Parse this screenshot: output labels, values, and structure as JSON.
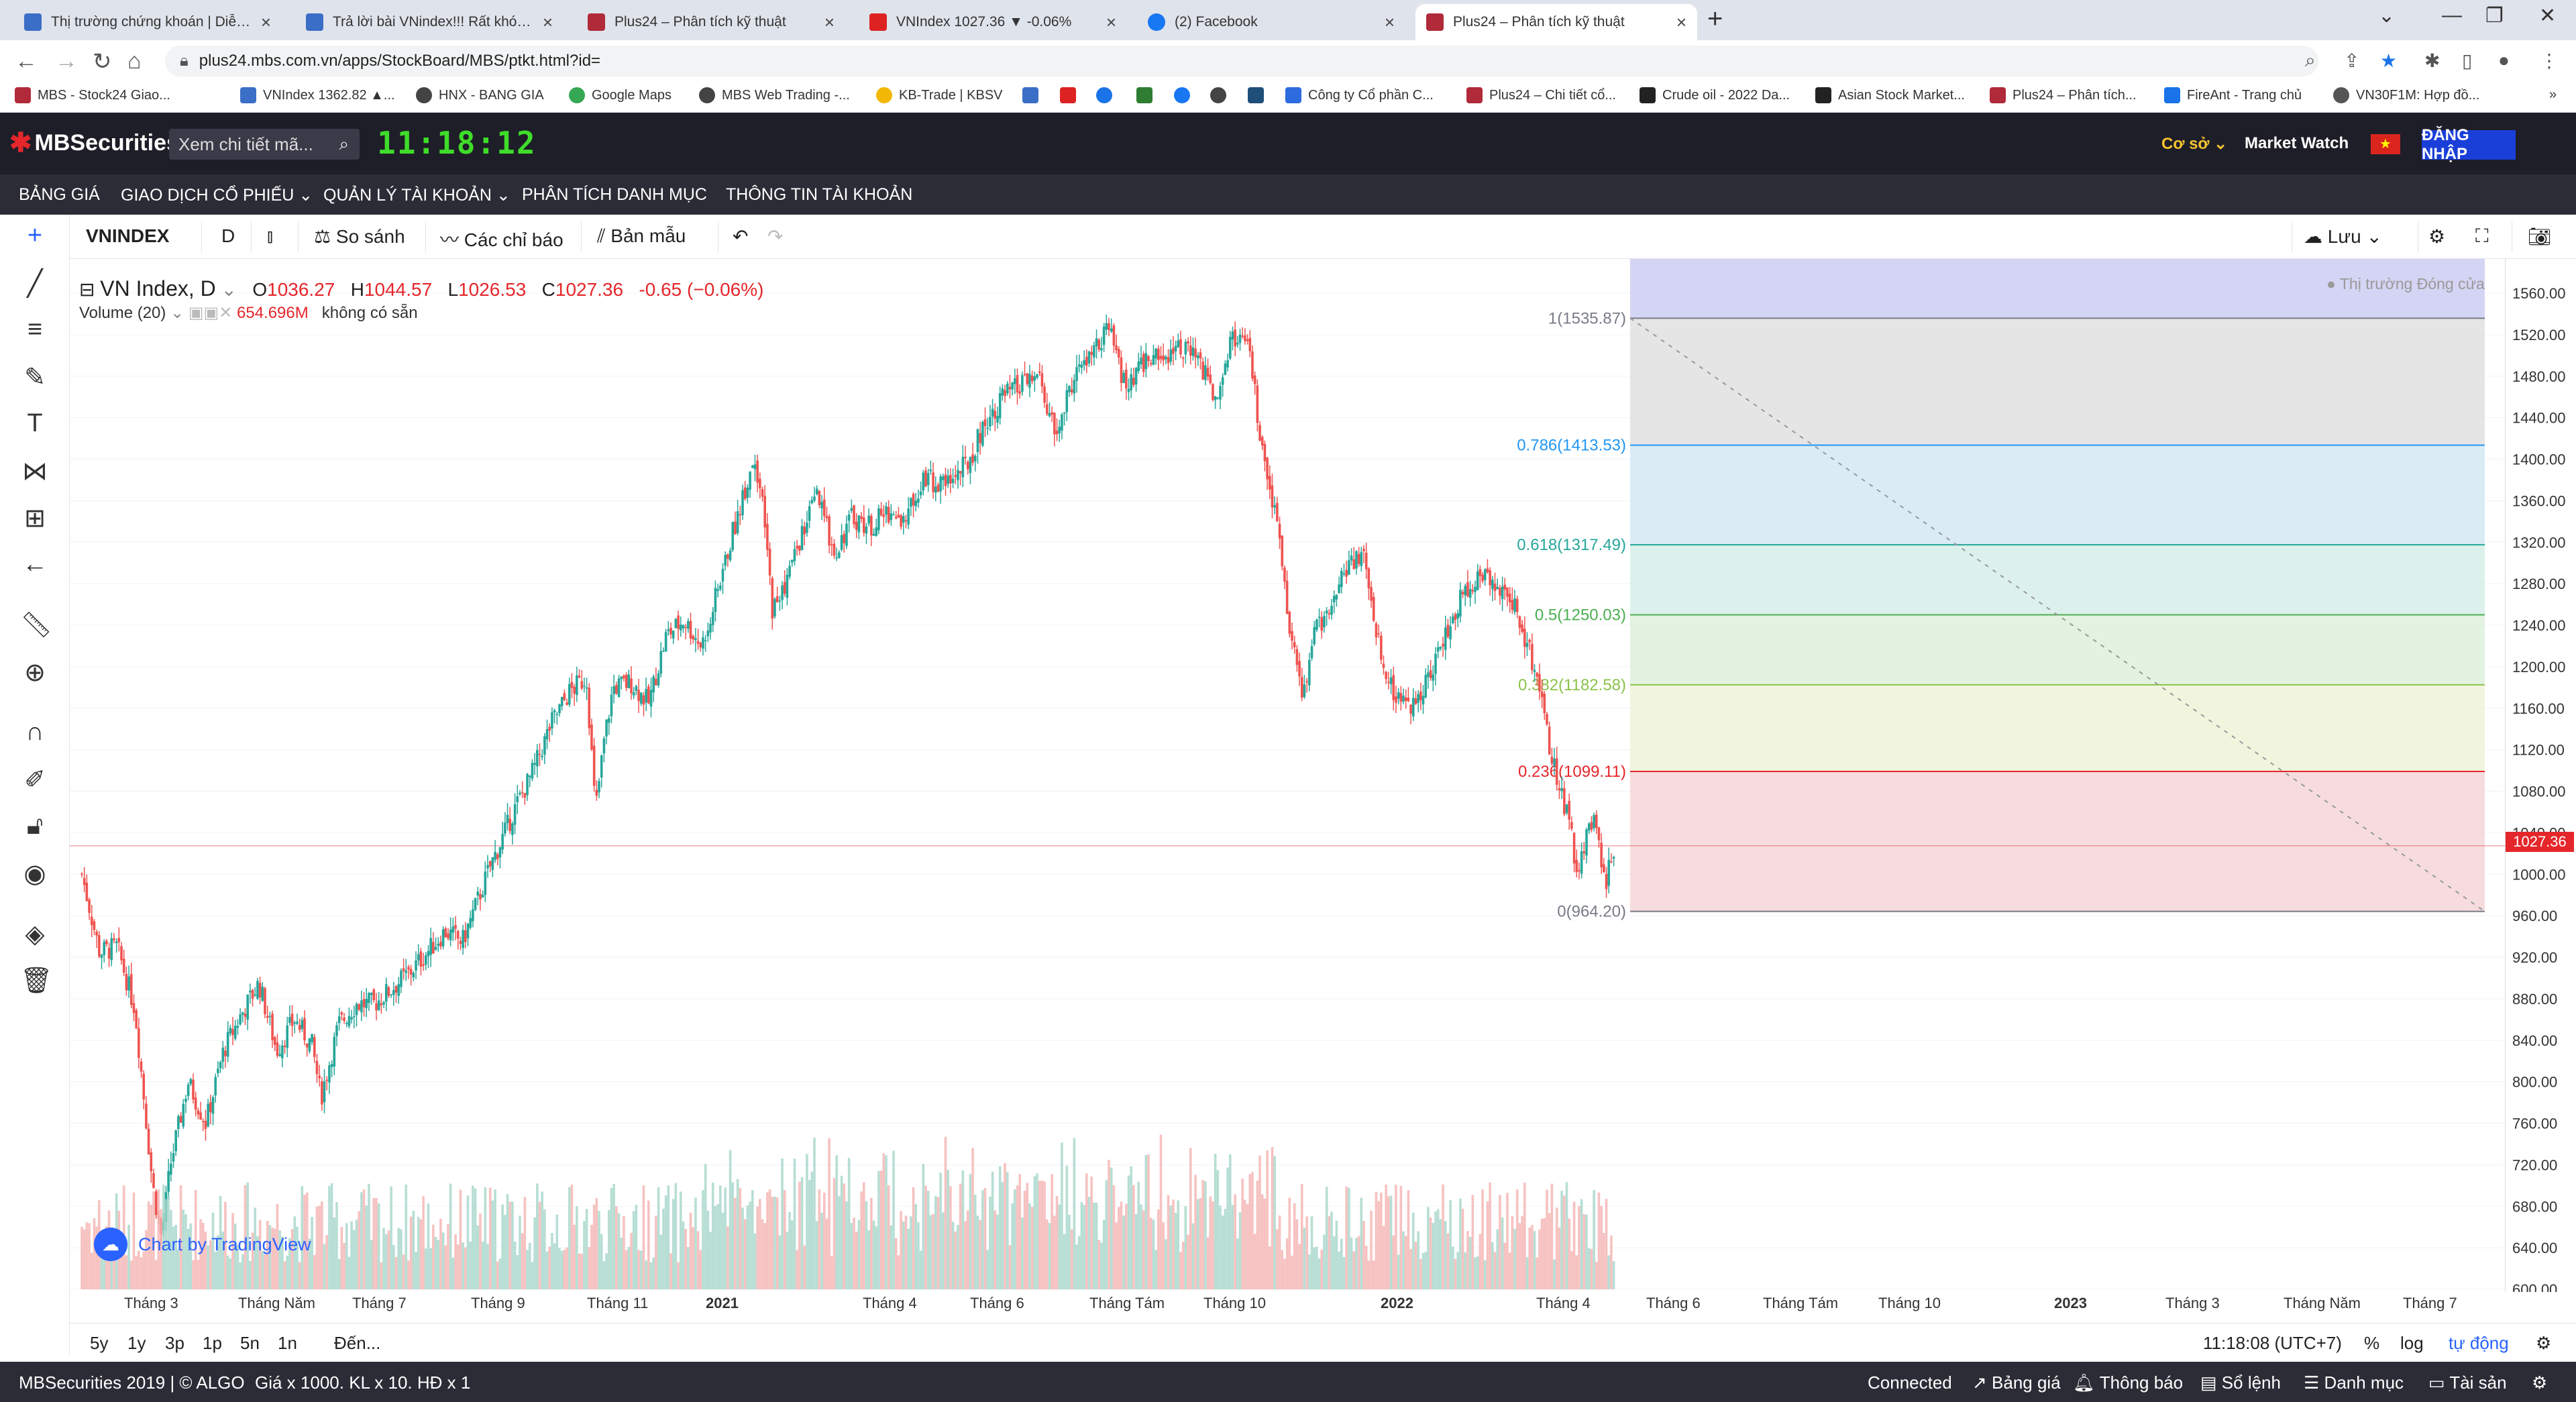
{
  "browser": {
    "tabs": [
      {
        "title": "Thị trường chứng khoán | Diễn đ...",
        "color": "#3b6ec7"
      },
      {
        "title": "Trả lời bài VNindex!!! Rất khó vẽ...",
        "color": "#3b6ec7"
      },
      {
        "title": "Plus24 – Phân tích kỹ thuật",
        "color": "#b02a3a"
      },
      {
        "title": "VNIndex 1027.36 ▼ -0.06%",
        "color": "#d22"
      },
      {
        "title": "(2) Facebook",
        "color": "#1877f2"
      },
      {
        "title": "Plus24 – Phân tích kỹ thuật",
        "color": "#b02a3a"
      }
    ],
    "url": "plus24.mbs.com.vn/apps/StockBoard/MBS/ptkt.html?id=",
    "bookmarks": [
      "MBS - Stock24 Giao...",
      "VNIndex 1362.82 ▲...",
      "HNX - BANG GIA",
      "Google Maps",
      "MBS Web Trading -...",
      "KB-Trade | KBSV",
      "",
      "",
      "",
      "",
      "",
      "",
      "Công ty Cổ phần C...",
      "Plus24 – Chi tiết cổ...",
      "Crude oil - 2022 Da...",
      "Asian Stock Market...",
      "Plus24 – Phân tích...",
      "FireAnt - Trang chủ",
      "VN30F1M: Hợp đồ..."
    ]
  },
  "header": {
    "logo": "MBSecurities",
    "search_placeholder": "Xem chi tiết mã...",
    "clock": "11:18:12",
    "coso": "Cơ sở ⌄",
    "market_watch": "Market Watch",
    "login": "ĐĂNG NHẬP"
  },
  "menu": [
    "BẢNG GIÁ",
    "GIAO DỊCH CỔ PHIẾU ⌄",
    "QUẢN LÝ TÀI KHOẢN ⌄",
    "PHÂN TÍCH DANH MỤC",
    "THÔNG TIN TÀI KHOẢN"
  ],
  "toolbar": {
    "symbol": "VNINDEX",
    "interval": "D",
    "compare": "So sánh",
    "indicators": "Các chỉ báo",
    "template": "Bản mẫu",
    "save": "Lưu"
  },
  "legend": {
    "name": "VN Index, D",
    "o_label": "O",
    "o": "1036.27",
    "h_label": "H",
    "h": "1044.57",
    "l_label": "L",
    "l": "1026.53",
    "c_label": "C",
    "c": "1027.36",
    "change": "-0.65 (−0.06%)",
    "volume_label": "Volume (20)",
    "volume": "654.696M",
    "volume_extra": "không có sẵn"
  },
  "status": "● Thị trường Đóng cửa",
  "tv_label": "Chart by TradingView",
  "chart_data": {
    "type": "candlestick",
    "title": "VN Index, D",
    "ylim": [
      600,
      1570
    ],
    "y_ticks": [
      "1560.00",
      "1520.00",
      "1480.00",
      "1440.00",
      "1400.00",
      "1360.00",
      "1320.00",
      "1280.00",
      "1240.00",
      "1200.00",
      "1160.00",
      "1120.00",
      "1080.00",
      "1040.00",
      "1000.00",
      "960.00",
      "920.00",
      "880.00",
      "840.00",
      "800.00",
      "760.00",
      "720.00",
      "680.00",
      "640.00",
      "600.00"
    ],
    "x_ticks": [
      "Tháng 3",
      "Tháng Năm",
      "Tháng 7",
      "Tháng 9",
      "Tháng 11",
      "2021",
      "Tháng 4",
      "Tháng 6",
      "Tháng Tám",
      "Tháng 10",
      "2022",
      "Tháng 4",
      "Tháng 6",
      "Tháng Tám",
      "Tháng 10",
      "2023",
      "Tháng 3",
      "Tháng Năm",
      "Tháng 7"
    ],
    "last_price": "1027.36",
    "close_path": [
      [
        0,
        1000
      ],
      [
        0.02,
        925
      ],
      [
        0.04,
        930
      ],
      [
        0.06,
        870
      ],
      [
        0.08,
        700
      ],
      [
        0.09,
        650
      ],
      [
        0.1,
        720
      ],
      [
        0.12,
        800
      ],
      [
        0.14,
        760
      ],
      [
        0.16,
        830
      ],
      [
        0.18,
        865
      ],
      [
        0.2,
        895
      ],
      [
        0.22,
        830
      ],
      [
        0.24,
        860
      ],
      [
        0.26,
        835
      ],
      [
        0.27,
        785
      ],
      [
        0.29,
        855
      ],
      [
        0.31,
        875
      ],
      [
        0.33,
        875
      ],
      [
        0.35,
        890
      ],
      [
        0.37,
        905
      ],
      [
        0.39,
        925
      ],
      [
        0.41,
        945
      ],
      [
        0.43,
        935
      ],
      [
        0.46,
        1005
      ],
      [
        0.49,
        1065
      ],
      [
        0.51,
        1100
      ],
      [
        0.53,
        1145
      ],
      [
        0.55,
        1175
      ],
      [
        0.57,
        1190
      ],
      [
        0.58,
        1060
      ],
      [
        0.59,
        1130
      ],
      [
        0.6,
        1180
      ],
      [
        0.62,
        1185
      ],
      [
        0.64,
        1165
      ],
      [
        0.66,
        1230
      ],
      [
        0.68,
        1245
      ],
      [
        0.7,
        1220
      ],
      [
        0.72,
        1280
      ],
      [
        0.74,
        1345
      ],
      [
        0.76,
        1405
      ],
      [
        0.77,
        1345
      ],
      [
        0.78,
        1255
      ],
      [
        0.79,
        1270
      ],
      [
        0.81,
        1320
      ],
      [
        0.83,
        1365
      ],
      [
        0.85,
        1310
      ],
      [
        0.87,
        1345
      ],
      [
        0.89,
        1335
      ],
      [
        0.91,
        1350
      ],
      [
        0.93,
        1340
      ],
      [
        0.95,
        1385
      ],
      [
        0.97,
        1375
      ],
      [
        1.0,
        1395
      ],
      [
        1.02,
        1435
      ],
      [
        1.04,
        1460
      ],
      [
        1.06,
        1470
      ],
      [
        1.08,
        1480
      ],
      [
        1.1,
        1420
      ],
      [
        1.12,
        1480
      ],
      [
        1.14,
        1500
      ],
      [
        1.16,
        1525
      ],
      [
        1.18,
        1465
      ],
      [
        1.2,
        1495
      ],
      [
        1.22,
        1500
      ],
      [
        1.24,
        1510
      ],
      [
        1.26,
        1495
      ],
      [
        1.28,
        1460
      ],
      [
        1.3,
        1520
      ],
      [
        1.32,
        1500
      ],
      [
        1.33,
        1420
      ],
      [
        1.34,
        1370
      ],
      [
        1.35,
        1340
      ],
      [
        1.36,
        1260
      ],
      [
        1.37,
        1210
      ],
      [
        1.38,
        1170
      ],
      [
        1.39,
        1230
      ],
      [
        1.41,
        1260
      ],
      [
        1.43,
        1300
      ],
      [
        1.45,
        1305
      ],
      [
        1.46,
        1240
      ],
      [
        1.48,
        1175
      ],
      [
        1.5,
        1160
      ],
      [
        1.52,
        1190
      ],
      [
        1.54,
        1230
      ],
      [
        1.56,
        1270
      ],
      [
        1.58,
        1290
      ],
      [
        1.6,
        1280
      ],
      [
        1.62,
        1255
      ],
      [
        1.64,
        1200
      ],
      [
        1.66,
        1110
      ],
      [
        1.68,
        1050
      ],
      [
        1.69,
        995
      ],
      [
        1.7,
        1045
      ],
      [
        1.71,
        1055
      ],
      [
        1.72,
        990
      ],
      [
        1.73,
        1027
      ]
    ],
    "fibonacci": [
      {
        "label": "1(1535.87)",
        "value": 1535.87,
        "color": "#787b86"
      },
      {
        "label": "0.786(1413.53)",
        "value": 1413.53,
        "color": "#2196f3"
      },
      {
        "label": "0.618(1317.49)",
        "value": 1317.49,
        "color": "#26a69a"
      },
      {
        "label": "0.5(1250.03)",
        "value": 1250.03,
        "color": "#4caf50"
      },
      {
        "label": "0.382(1182.58)",
        "value": 1182.58,
        "color": "#8bc34a"
      },
      {
        "label": "0.236(1099.11)",
        "value": 1099.11,
        "color": "#e5262b"
      },
      {
        "label": "0(964.20)",
        "value": 964.2,
        "color": "#787b86"
      }
    ]
  },
  "range": {
    "periods": [
      "5y",
      "1y",
      "3p",
      "1p",
      "5n",
      "1n"
    ],
    "goto": "Đến...",
    "time": "11:18:08 (UTC+7)",
    "pct": "%",
    "log": "log",
    "auto": "tự động"
  },
  "footer": {
    "copyright": "MBSecurities 2019 | © ALGO",
    "units": "Giá x 1000. KL x 10. HĐ x 1",
    "connected": "Connected",
    "price_board": "Bảng giá",
    "notify": "Thông báo",
    "orders": "Sổ lệnh",
    "portfolio": "Danh mục",
    "assets": "Tài sản"
  }
}
